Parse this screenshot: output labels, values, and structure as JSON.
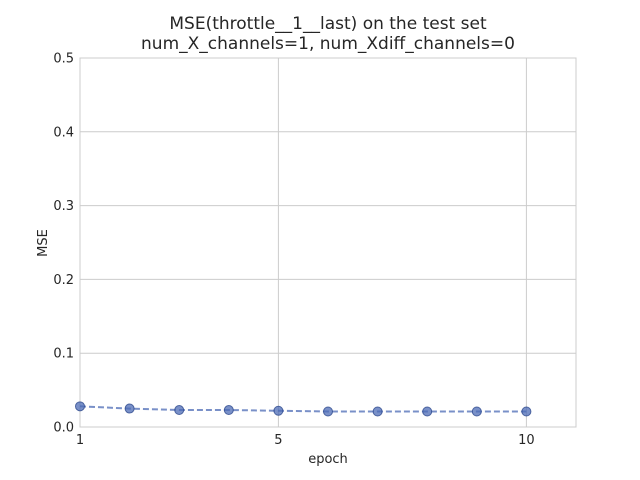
{
  "chart_data": {
    "type": "line",
    "title": "MSE(throttle__1__last) on the test set",
    "subtitle": "num_X_channels=1, num_Xdiff_channels=0",
    "xlabel": "epoch",
    "ylabel": "MSE",
    "xlim": [
      1,
      11
    ],
    "ylim": [
      0,
      0.5
    ],
    "x_ticks": [
      "1",
      "5",
      "10"
    ],
    "x_tick_values": [
      1,
      5,
      10
    ],
    "y_ticks": [
      "0.0",
      "0.1",
      "0.2",
      "0.3",
      "0.4",
      "0.5"
    ],
    "y_tick_values": [
      0,
      0.1,
      0.2,
      0.3,
      0.4,
      0.5
    ],
    "grid": true,
    "series": [
      {
        "x": [
          1,
          2,
          3,
          4,
          5,
          6,
          7,
          8,
          9,
          10
        ],
        "values": [
          0.028,
          0.025,
          0.023,
          0.023,
          0.022,
          0.021,
          0.021,
          0.021,
          0.021,
          0.021
        ],
        "color": "#4c6bb5",
        "line_style": "dashed",
        "marker": "circle"
      }
    ]
  }
}
